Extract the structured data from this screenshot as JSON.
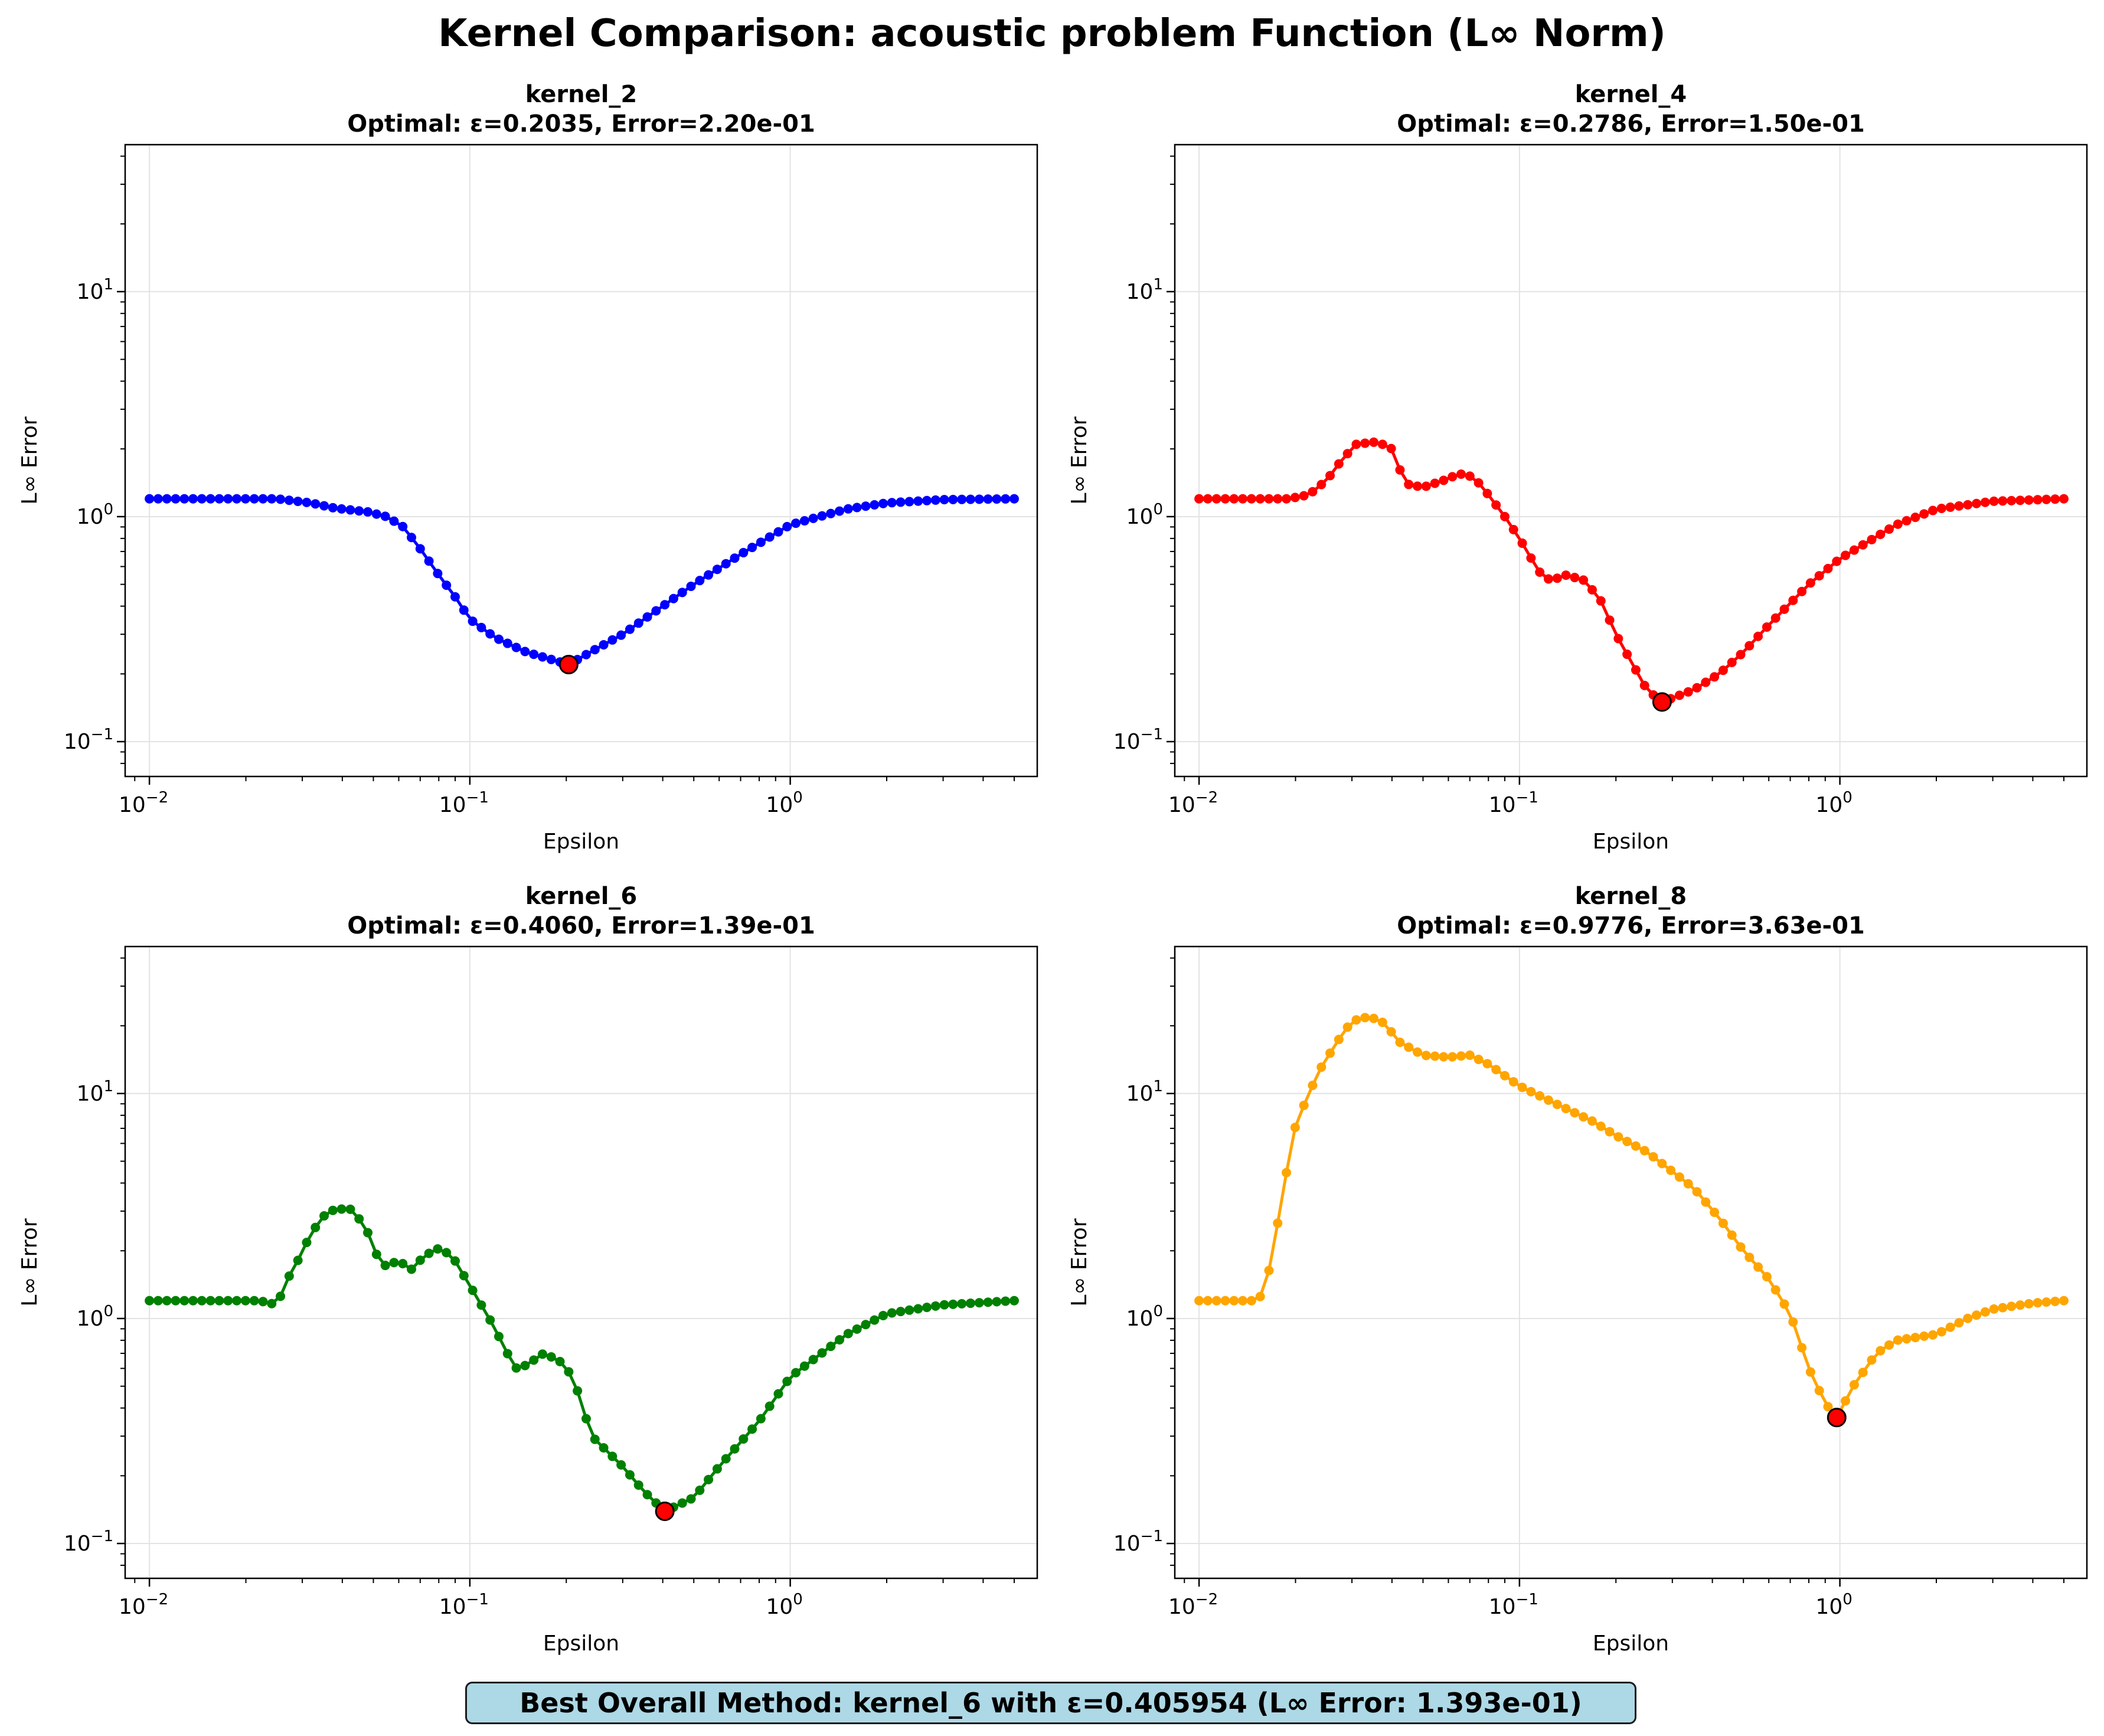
{
  "figure": {
    "suptitle": "Kernel Comparison: acoustic problem Function (L∞ Norm)",
    "summary": "Best Overall Method: kernel_6 with ε=0.405954 (L∞ Error: 1.393e-01)"
  },
  "chart_data": [
    {
      "type": "line",
      "title": "kernel_2",
      "subtitle": "Optimal: ε=0.2035, Error=2.20e-01",
      "xlabel": "Epsilon",
      "ylabel": "L∞ Error",
      "xscale": "log",
      "yscale": "log",
      "xlim": [
        0.0084,
        5.9
      ],
      "ylim": [
        0.07,
        45
      ],
      "xticks": [
        0.01,
        0.1,
        1
      ],
      "yticks": [
        0.1,
        1,
        10
      ],
      "grid": true,
      "color": "#0000ff",
      "x_range": [
        0.01,
        5.0
      ],
      "n_points": 100,
      "curve_knots": [
        [
          0.01,
          1.2
        ],
        [
          0.025,
          1.2
        ],
        [
          0.032,
          1.15
        ],
        [
          0.038,
          1.09
        ],
        [
          0.048,
          1.05
        ],
        [
          0.055,
          1.0
        ],
        [
          0.062,
          0.9
        ],
        [
          0.07,
          0.72
        ],
        [
          0.08,
          0.55
        ],
        [
          0.09,
          0.44
        ],
        [
          0.1,
          0.35
        ],
        [
          0.12,
          0.29
        ],
        [
          0.15,
          0.25
        ],
        [
          0.2035,
          0.22
        ],
        [
          0.25,
          0.26
        ],
        [
          0.3,
          0.3
        ],
        [
          0.4,
          0.4
        ],
        [
          0.5,
          0.5
        ],
        [
          0.7,
          0.68
        ],
        [
          1.0,
          0.92
        ],
        [
          1.5,
          1.08
        ],
        [
          2.0,
          1.15
        ],
        [
          3.0,
          1.19
        ],
        [
          5.0,
          1.2
        ]
      ],
      "optimum": {
        "x": 0.2035,
        "y": 0.22
      }
    },
    {
      "type": "line",
      "title": "kernel_4",
      "subtitle": "Optimal: ε=0.2786, Error=1.50e-01",
      "xlabel": "Epsilon",
      "ylabel": "L∞ Error",
      "xscale": "log",
      "yscale": "log",
      "xlim": [
        0.0084,
        5.9
      ],
      "ylim": [
        0.07,
        45
      ],
      "xticks": [
        0.01,
        0.1,
        1
      ],
      "yticks": [
        0.1,
        1,
        10
      ],
      "grid": true,
      "color": "#ff0000",
      "x_range": [
        0.01,
        5.0
      ],
      "n_points": 100,
      "curve_knots": [
        [
          0.01,
          1.2
        ],
        [
          0.019,
          1.2
        ],
        [
          0.022,
          1.25
        ],
        [
          0.025,
          1.45
        ],
        [
          0.028,
          1.8
        ],
        [
          0.031,
          2.1
        ],
        [
          0.036,
          2.15
        ],
        [
          0.04,
          2.0
        ],
        [
          0.044,
          1.4
        ],
        [
          0.05,
          1.35
        ],
        [
          0.058,
          1.45
        ],
        [
          0.065,
          1.55
        ],
        [
          0.072,
          1.5
        ],
        [
          0.08,
          1.25
        ],
        [
          0.09,
          1.0
        ],
        [
          0.1,
          0.8
        ],
        [
          0.115,
          0.57
        ],
        [
          0.125,
          0.52
        ],
        [
          0.14,
          0.55
        ],
        [
          0.16,
          0.52
        ],
        [
          0.18,
          0.42
        ],
        [
          0.2,
          0.3
        ],
        [
          0.23,
          0.21
        ],
        [
          0.25,
          0.17
        ],
        [
          0.2786,
          0.15
        ],
        [
          0.35,
          0.17
        ],
        [
          0.42,
          0.2
        ],
        [
          0.5,
          0.25
        ],
        [
          0.6,
          0.33
        ],
        [
          0.8,
          0.5
        ],
        [
          1.0,
          0.65
        ],
        [
          1.5,
          0.92
        ],
        [
          2.0,
          1.08
        ],
        [
          3.0,
          1.17
        ],
        [
          5.0,
          1.2
        ]
      ],
      "optimum": {
        "x": 0.2786,
        "y": 0.15
      }
    },
    {
      "type": "line",
      "title": "kernel_6",
      "subtitle": "Optimal: ε=0.4060, Error=1.39e-01",
      "xlabel": "Epsilon",
      "ylabel": "L∞ Error",
      "xscale": "log",
      "yscale": "log",
      "xlim": [
        0.0084,
        5.9
      ],
      "ylim": [
        0.07,
        45
      ],
      "xticks": [
        0.01,
        0.1,
        1
      ],
      "yticks": [
        0.1,
        1,
        10
      ],
      "grid": true,
      "color": "#008000",
      "x_range": [
        0.01,
        5.0
      ],
      "n_points": 100,
      "curve_knots": [
        [
          0.01,
          1.2
        ],
        [
          0.022,
          1.2
        ],
        [
          0.025,
          1.15
        ],
        [
          0.027,
          1.5
        ],
        [
          0.029,
          1.8
        ],
        [
          0.032,
          2.4
        ],
        [
          0.036,
          3.0
        ],
        [
          0.042,
          3.1
        ],
        [
          0.047,
          2.6
        ],
        [
          0.053,
          1.7
        ],
        [
          0.06,
          1.8
        ],
        [
          0.066,
          1.65
        ],
        [
          0.072,
          1.9
        ],
        [
          0.08,
          2.05
        ],
        [
          0.088,
          1.9
        ],
        [
          0.1,
          1.4
        ],
        [
          0.115,
          1.0
        ],
        [
          0.128,
          0.75
        ],
        [
          0.138,
          0.6
        ],
        [
          0.15,
          0.62
        ],
        [
          0.17,
          0.7
        ],
        [
          0.19,
          0.65
        ],
        [
          0.21,
          0.55
        ],
        [
          0.24,
          0.3
        ],
        [
          0.3,
          0.22
        ],
        [
          0.35,
          0.17
        ],
        [
          0.406,
          0.139
        ],
        [
          0.5,
          0.16
        ],
        [
          0.6,
          0.22
        ],
        [
          0.8,
          0.35
        ],
        [
          1.0,
          0.55
        ],
        [
          1.5,
          0.85
        ],
        [
          2.0,
          1.05
        ],
        [
          3.0,
          1.15
        ],
        [
          5.0,
          1.2
        ]
      ],
      "optimum": {
        "x": 0.406,
        "y": 0.139
      }
    },
    {
      "type": "line",
      "title": "kernel_8",
      "subtitle": "Optimal: ε=0.9776, Error=3.63e-01",
      "xlabel": "Epsilon",
      "ylabel": "L∞ Error",
      "xscale": "log",
      "yscale": "log",
      "xlim": [
        0.0084,
        5.9
      ],
      "ylim": [
        0.07,
        45
      ],
      "xticks": [
        0.01,
        0.1,
        1
      ],
      "yticks": [
        0.1,
        1,
        10
      ],
      "grid": true,
      "color": "#ffa500",
      "x_range": [
        0.01,
        5.0
      ],
      "n_points": 100,
      "curve_knots": [
        [
          0.01,
          1.2
        ],
        [
          0.015,
          1.2
        ],
        [
          0.016,
          1.3
        ],
        [
          0.017,
          2.0
        ],
        [
          0.018,
          3.2
        ],
        [
          0.019,
          5.0
        ],
        [
          0.02,
          7.2
        ],
        [
          0.022,
          10.0
        ],
        [
          0.024,
          13.0
        ],
        [
          0.027,
          17.0
        ],
        [
          0.03,
          21.0
        ],
        [
          0.034,
          22.0
        ],
        [
          0.038,
          20.5
        ],
        [
          0.042,
          17.0
        ],
        [
          0.05,
          14.8
        ],
        [
          0.06,
          14.5
        ],
        [
          0.07,
          14.8
        ],
        [
          0.08,
          13.5
        ],
        [
          0.1,
          10.8
        ],
        [
          0.13,
          9.0
        ],
        [
          0.17,
          7.5
        ],
        [
          0.2,
          6.5
        ],
        [
          0.25,
          5.5
        ],
        [
          0.3,
          4.5
        ],
        [
          0.35,
          3.8
        ],
        [
          0.42,
          2.8
        ],
        [
          0.5,
          2.0
        ],
        [
          0.6,
          1.5
        ],
        [
          0.7,
          1.05
        ],
        [
          0.8,
          0.6
        ],
        [
          0.9,
          0.42
        ],
        [
          0.9776,
          0.363
        ],
        [
          1.1,
          0.5
        ],
        [
          1.3,
          0.7
        ],
        [
          1.5,
          0.8
        ],
        [
          2.0,
          0.85
        ],
        [
          2.5,
          1.0
        ],
        [
          3.0,
          1.1
        ],
        [
          4.0,
          1.17
        ],
        [
          5.0,
          1.2
        ]
      ],
      "optimum": {
        "x": 0.9776,
        "y": 0.363
      }
    }
  ]
}
